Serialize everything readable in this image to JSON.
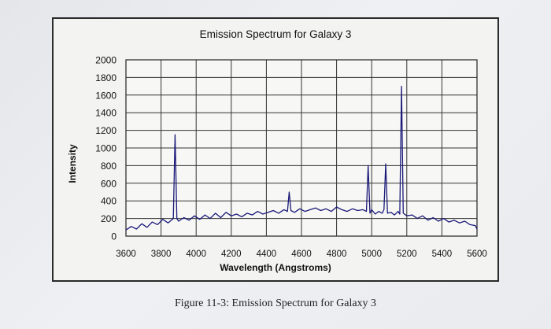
{
  "chart_data": {
    "type": "line",
    "title": "Emission Spectrum for Galaxy 3",
    "xlabel": "Wavelength (Angstroms)",
    "ylabel": "Intensity",
    "xlim": [
      3600,
      5600
    ],
    "ylim": [
      0,
      2000
    ],
    "x_ticks": [
      3600,
      3800,
      4000,
      4200,
      4400,
      4600,
      4800,
      5000,
      5200,
      5400,
      5600
    ],
    "y_ticks": [
      0,
      200,
      400,
      600,
      800,
      1000,
      1200,
      1400,
      1600,
      1800,
      2000
    ],
    "grid": true,
    "legend": "none",
    "line_color": "#1a1a7a",
    "series": [
      {
        "x": [
          3600,
          3630,
          3660,
          3690,
          3720,
          3750,
          3780,
          3810,
          3840,
          3870,
          3880,
          3890,
          3900,
          3930,
          3960,
          3990,
          4020,
          4050,
          4080,
          4110,
          4140,
          4170,
          4200,
          4230,
          4260,
          4290,
          4320,
          4350,
          4380,
          4410,
          4440,
          4470,
          4500,
          4520,
          4530,
          4540,
          4560,
          4590,
          4620,
          4650,
          4680,
          4710,
          4740,
          4770,
          4800,
          4830,
          4860,
          4890,
          4920,
          4950,
          4970,
          4980,
          4990,
          5000,
          5020,
          5040,
          5060,
          5070,
          5080,
          5090,
          5110,
          5130,
          5150,
          5160,
          5170,
          5180,
          5200,
          5230,
          5260,
          5290,
          5320,
          5350,
          5380,
          5410,
          5440,
          5470,
          5500,
          5530,
          5560,
          5590,
          5600
        ],
        "y": [
          70,
          110,
          80,
          140,
          100,
          160,
          130,
          190,
          150,
          200,
          1150,
          200,
          170,
          210,
          180,
          230,
          190,
          240,
          200,
          260,
          210,
          270,
          230,
          250,
          220,
          260,
          240,
          280,
          250,
          270,
          290,
          260,
          300,
          280,
          500,
          290,
          270,
          310,
          280,
          300,
          320,
          290,
          310,
          280,
          330,
          300,
          280,
          310,
          290,
          300,
          280,
          800,
          260,
          300,
          250,
          280,
          260,
          300,
          820,
          260,
          270,
          240,
          280,
          250,
          1700,
          260,
          230,
          240,
          200,
          230,
          180,
          210,
          170,
          200,
          160,
          180,
          150,
          170,
          130,
          120,
          80
        ]
      }
    ]
  },
  "figure_caption": "Figure 11-3: Emission Spectrum for Galaxy 3"
}
